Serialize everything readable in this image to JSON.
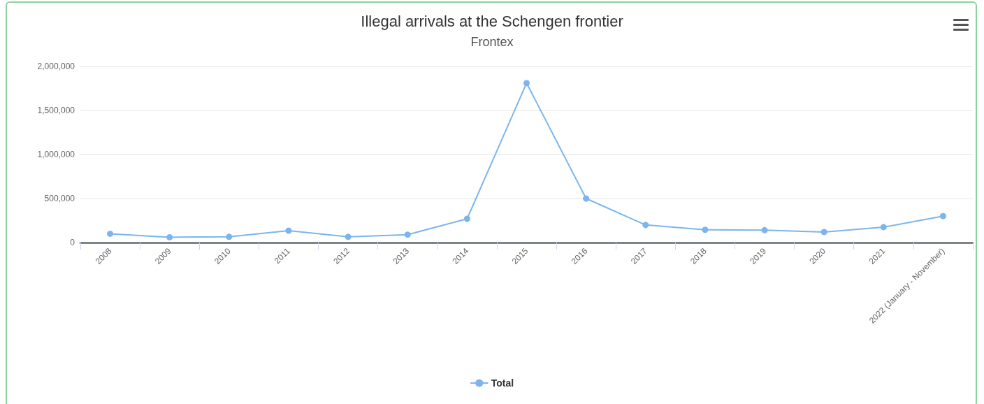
{
  "chart_data": {
    "type": "line",
    "title": "Illegal arrivals at the Schengen frontier",
    "subtitle": "Frontex",
    "categories": [
      "2008",
      "2009",
      "2010",
      "2011",
      "2012",
      "2013",
      "2014",
      "2015",
      "2016",
      "2017",
      "2018",
      "2019",
      "2020",
      "2021",
      "2022 (January - November)"
    ],
    "series": [
      {
        "name": "Total",
        "color": "#7cb5ec",
        "values": [
          100000,
          60000,
          65000,
          135000,
          65000,
          90000,
          270000,
          1810000,
          500000,
          200000,
          145000,
          140000,
          120000,
          175000,
          300000
        ]
      }
    ],
    "ylim": [
      0,
      2000000
    ],
    "yticks": [
      0,
      {
        "value": 500000,
        "label": "500,000"
      },
      {
        "value": 1000000,
        "label": "1,000,000"
      },
      {
        "value": 1500000,
        "label": "1,500,000"
      },
      {
        "value": 2000000,
        "label": "2,000,000"
      }
    ],
    "grid": "y",
    "legend": "bottom",
    "marker": "circle",
    "line_style": "solid"
  }
}
